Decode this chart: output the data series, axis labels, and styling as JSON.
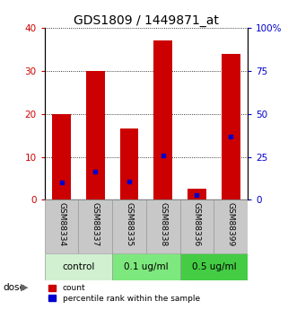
{
  "title": "GDS1809 / 1449871_at",
  "samples": [
    "GSM88334",
    "GSM88337",
    "GSM88335",
    "GSM88338",
    "GSM88336",
    "GSM88399"
  ],
  "count_values": [
    20,
    30,
    16.5,
    37,
    2.5,
    34
  ],
  "percentile_values": [
    10,
    16.5,
    10.5,
    26,
    3,
    37
  ],
  "groups": [
    {
      "label": "control",
      "span": [
        0,
        2
      ],
      "color": "#d4f0d4"
    },
    {
      "label": "0.1 ug/ml",
      "span": [
        2,
        4
      ],
      "color": "#90ee90"
    },
    {
      "label": "0.5 ug/ml",
      "span": [
        4,
        6
      ],
      "color": "#55dd55"
    }
  ],
  "ylim_left": [
    0,
    40
  ],
  "ylim_right": [
    0,
    100
  ],
  "yticks_left": [
    0,
    10,
    20,
    30,
    40
  ],
  "yticks_right": [
    0,
    25,
    50,
    75,
    100
  ],
  "ytick_labels_right": [
    "0",
    "25",
    "50",
    "75",
    "100%"
  ],
  "bar_color": "#cc0000",
  "dot_color": "#0000cc",
  "bar_width": 0.55,
  "title_fontsize": 10,
  "tick_fontsize": 7.5,
  "grid_color": "#000000",
  "bg_color": "#ffffff",
  "xlabel_color": "#cc0000",
  "ylabel_right_color": "#0000cc",
  "sample_box_color": "#c8c8c8",
  "sample_box_edge": "#999999",
  "legend_count_label": "count",
  "legend_pct_label": "percentile rank within the sample",
  "dose_label": "dose"
}
